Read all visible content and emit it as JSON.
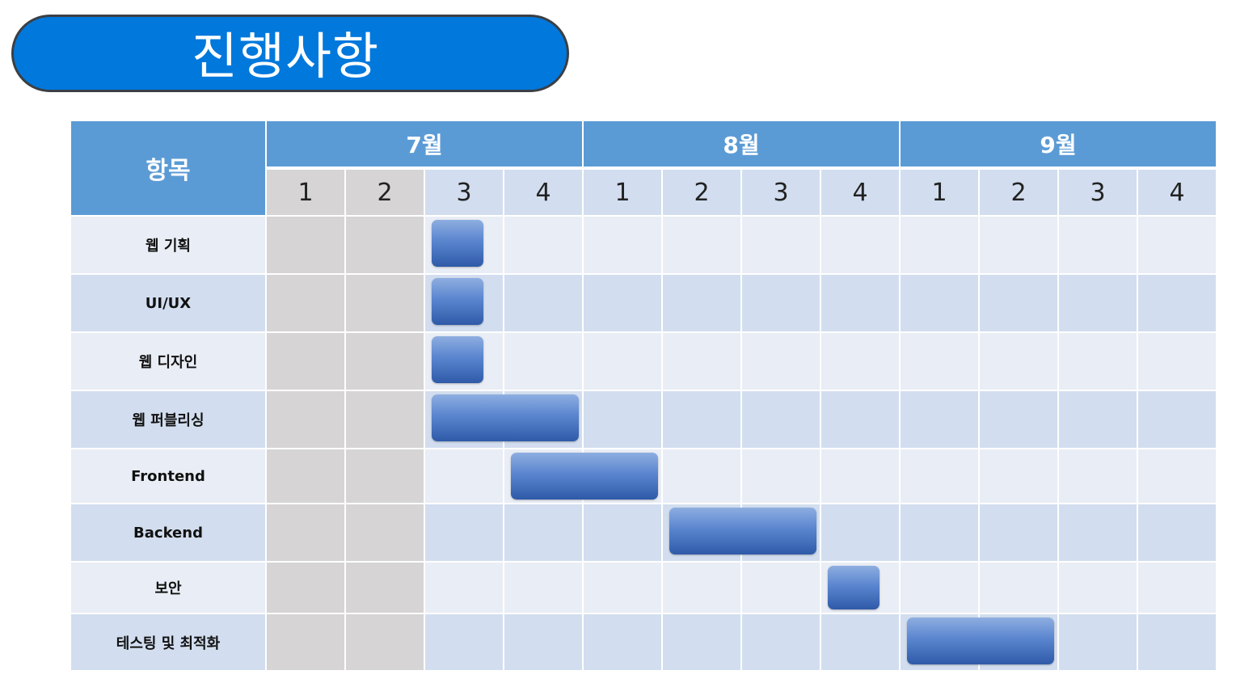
{
  "title": "진행사항",
  "chart_data": {
    "type": "gantt",
    "item_header": "항목",
    "months": [
      "7월",
      "8월",
      "9월"
    ],
    "weeks": [
      "1",
      "2",
      "3",
      "4"
    ],
    "tasks": [
      {
        "label": "웹 기획",
        "start_week": 3,
        "end_week": 3.8
      },
      {
        "label": "UI/UX",
        "start_week": 3,
        "end_week": 3.8
      },
      {
        "label": "웹 디자인",
        "start_week": 3,
        "end_week": 3.8
      },
      {
        "label": "웹 퍼블리싱",
        "start_week": 3,
        "end_week": 5
      },
      {
        "label": "Frontend",
        "start_week": 4,
        "end_week": 6
      },
      {
        "label": "Backend",
        "start_week": 6,
        "end_week": 8
      },
      {
        "label": "보안",
        "start_week": 8,
        "end_week": 8.8
      },
      {
        "label": "테스팅 및 최적화",
        "start_week": 9,
        "end_week": 11
      }
    ],
    "shaded_weeks": [
      1,
      2
    ],
    "colors": {
      "header": "#5b9bd5",
      "row_light": "#e9edf5",
      "row_dark": "#d2deef",
      "shaded": "#d6d4d5",
      "bar": "#4472c4",
      "title": "#0078dc"
    }
  }
}
